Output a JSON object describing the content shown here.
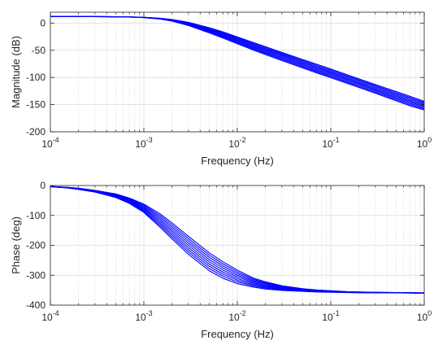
{
  "colors": {
    "series": "#0000ff",
    "axes": "#262626",
    "grid_major": "#dcdcdc",
    "grid_minor": "#d0d0d0",
    "background": "#ffffff"
  },
  "chart_data": [
    {
      "type": "line",
      "xscale": "log",
      "xlim": [
        0.0001,
        1
      ],
      "ylim": [
        -200,
        20
      ],
      "xlabel": "Frequency (Hz)",
      "ylabel": "Magnitude (dB)",
      "grid": true,
      "x_ticks": [
        {
          "base": "10",
          "exp": "-4"
        },
        {
          "base": "10",
          "exp": "-3"
        },
        {
          "base": "10",
          "exp": "-2"
        },
        {
          "base": "10",
          "exp": "-1"
        },
        {
          "base": "10",
          "exp": "0"
        }
      ],
      "y_ticks": [
        "0",
        "-50",
        "-100",
        "-150",
        "-200"
      ],
      "x": [
        0.0001,
        0.00015,
        0.0002,
        0.0003,
        0.0005,
        0.0007,
        0.001,
        0.0015,
        0.002,
        0.003,
        0.005,
        0.007,
        0.01,
        0.015,
        0.02,
        0.03,
        0.05,
        0.07,
        0.1,
        0.15,
        0.2,
        0.3,
        0.5,
        0.7,
        1
      ],
      "series_family": {
        "count": 9,
        "y_first": [
          12,
          12,
          12,
          11.9,
          11.7,
          11.4,
          10.7,
          8.8,
          6.6,
          1.5,
          -8.5,
          -16.2,
          -25.5,
          -36,
          -43.5,
          -54,
          -67,
          -75.5,
          -84.5,
          -95,
          -102.5,
          -113,
          -126,
          -134.5,
          -144
        ],
        "y_last": [
          12,
          12,
          12,
          11.9,
          11.5,
          11.1,
          10,
          7.3,
          3.6,
          -4.5,
          -18,
          -27.5,
          -38,
          -50,
          -58,
          -69,
          -82.5,
          -91.5,
          -100.5,
          -111,
          -118.5,
          -129,
          -143,
          -152,
          -160
        ]
      },
      "band_edges_at_1Hz": [
        -165,
        -180
      ]
    },
    {
      "type": "line",
      "xscale": "log",
      "xlim": [
        0.0001,
        1
      ],
      "ylim": [
        -400,
        0
      ],
      "xlabel": "Frequency (Hz)",
      "ylabel": "Phase (deg)",
      "grid": true,
      "x_ticks": [
        {
          "base": "10",
          "exp": "-4"
        },
        {
          "base": "10",
          "exp": "-3"
        },
        {
          "base": "10",
          "exp": "-2"
        },
        {
          "base": "10",
          "exp": "-1"
        },
        {
          "base": "10",
          "exp": "0"
        }
      ],
      "y_ticks": [
        "0",
        "-100",
        "-200",
        "-300",
        "-400"
      ],
      "x": [
        0.0001,
        0.00015,
        0.0002,
        0.0003,
        0.0005,
        0.0007,
        0.001,
        0.0015,
        0.002,
        0.003,
        0.005,
        0.007,
        0.01,
        0.015,
        0.02,
        0.03,
        0.05,
        0.07,
        0.1,
        0.15,
        0.2,
        0.3,
        0.5,
        0.7,
        1
      ],
      "series_family": {
        "count": 9,
        "y_first": [
          -3,
          -6,
          -9,
          -16,
          -28,
          -42,
          -62,
          -95,
          -125,
          -170,
          -225,
          -255,
          -283,
          -310,
          -322,
          -335,
          -345,
          -349,
          -352,
          -355,
          -356,
          -357,
          -358,
          -358.5,
          -359
        ],
        "y_last": [
          -4,
          -8,
          -13,
          -22,
          -40,
          -60,
          -90,
          -140,
          -178,
          -230,
          -285,
          -310,
          -328,
          -340,
          -346,
          -351,
          -354,
          -356,
          -357,
          -358,
          -358.5,
          -359,
          -359,
          -359.5,
          -360
        ]
      }
    }
  ]
}
